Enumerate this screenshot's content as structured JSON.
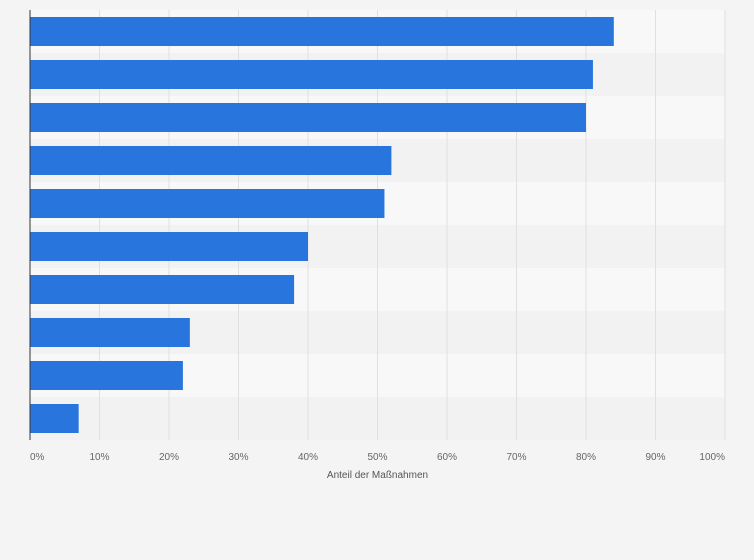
{
  "chart_data": {
    "type": "bar",
    "orientation": "horizontal",
    "categories": [
      "",
      "",
      "",
      "",
      "",
      "",
      "",
      "",
      "",
      ""
    ],
    "values": [
      84,
      81,
      80,
      52,
      51,
      40,
      38,
      23,
      22,
      7
    ],
    "xlabel": "Anteil der Maßnahmen",
    "ylabel": "",
    "xlim": [
      0,
      100
    ],
    "ticks": [
      0,
      10,
      20,
      30,
      40,
      50,
      60,
      70,
      80,
      90,
      100
    ],
    "tick_labels": [
      "0%",
      "10%",
      "20%",
      "30%",
      "40%",
      "50%",
      "60%",
      "70%",
      "80%",
      "90%",
      "100%"
    ],
    "grid": true,
    "bar_color": "#2875de",
    "band_colors": [
      "#f8f8f8",
      "#f2f2f2"
    ],
    "gridline_color": "#e0e0e0",
    "axis_color": "#333333"
  }
}
